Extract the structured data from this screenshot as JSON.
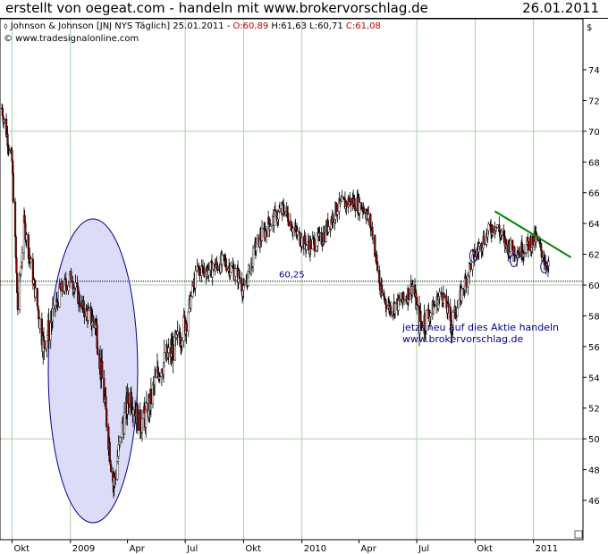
{
  "header": {
    "title": "erstellt von oegeat.com - handeln mit www.brokervorschlag.de",
    "date": "26.01.2011"
  },
  "legend": {
    "symbol_text": "Johnson & Johnson [JNJ NYS  Täglich] 25.01.2011 - ",
    "open": "O:60,89",
    "high": "H:61,63",
    "low": "L:60,71",
    "close": "C:61,08",
    "copyright": "© www.tradesignalonline.com",
    "currency": "$"
  },
  "colors": {
    "up_candle": "#ffffff",
    "down_candle": "#8b0000",
    "trendline": "#008000",
    "ellipse_fill": "#dcdcf8",
    "grid": "#a9cfa9",
    "annotation": "#00008b"
  },
  "annotations": {
    "level_label": "60,25",
    "promo_line1": "jetzt neu auf dies Aktie handeln",
    "promo_line2": "www.brokervorschlag.de"
  },
  "chart_data": {
    "type": "candlestick",
    "title": "Johnson & Johnson [JNJ NYS Täglich]",
    "ylim": [
      44,
      75
    ],
    "y_ticks": [
      46,
      48,
      50,
      52,
      54,
      56,
      58,
      60,
      62,
      64,
      66,
      68,
      70,
      72,
      74
    ],
    "x_ticks": [
      "Okt",
      "2009",
      "Apr",
      "Jul",
      "Okt",
      "2010",
      "Apr",
      "Jul",
      "Okt",
      "2011"
    ],
    "price_path": [
      [
        "2008-09-15",
        71.5
      ],
      [
        "2008-10-01",
        68.0
      ],
      [
        "2008-10-10",
        58.5
      ],
      [
        "2008-10-20",
        64.0
      ],
      [
        "2008-11-01",
        61.0
      ],
      [
        "2008-11-20",
        56.0
      ],
      [
        "2008-12-15",
        59.5
      ],
      [
        "2009-01-02",
        60.5
      ],
      [
        "2009-01-20",
        58.5
      ],
      [
        "2009-02-10",
        57.5
      ],
      [
        "2009-03-01",
        50.5
      ],
      [
        "2009-03-10",
        47.0
      ],
      [
        "2009-03-25",
        51.0
      ],
      [
        "2009-04-05",
        53.0
      ],
      [
        "2009-04-20",
        51.0
      ],
      [
        "2009-05-01",
        51.5
      ],
      [
        "2009-05-20",
        54.5
      ],
      [
        "2009-06-15",
        56.0
      ],
      [
        "2009-07-01",
        57.5
      ],
      [
        "2009-07-20",
        61.0
      ],
      [
        "2009-08-10",
        61.0
      ],
      [
        "2009-09-01",
        61.5
      ],
      [
        "2009-09-25",
        60.5
      ],
      [
        "2009-10-01",
        59.5
      ],
      [
        "2009-10-20",
        62.5
      ],
      [
        "2009-11-10",
        64.0
      ],
      [
        "2009-12-05",
        65.0
      ],
      [
        "2009-12-20",
        63.5
      ],
      [
        "2010-01-10",
        62.5
      ],
      [
        "2010-02-01",
        63.0
      ],
      [
        "2010-02-25",
        65.0
      ],
      [
        "2010-03-20",
        65.5
      ],
      [
        "2010-04-10",
        65.0
      ],
      [
        "2010-04-22",
        63.5
      ],
      [
        "2010-05-05",
        59.5
      ],
      [
        "2010-05-20",
        58.5
      ],
      [
        "2010-06-10",
        59.0
      ],
      [
        "2010-06-25",
        60.0
      ],
      [
        "2010-07-05",
        57.5
      ],
      [
        "2010-07-20",
        58.0
      ],
      [
        "2010-08-10",
        59.5
      ],
      [
        "2010-08-25",
        57.5
      ],
      [
        "2010-09-10",
        59.5
      ],
      [
        "2010-09-25",
        61.5
      ],
      [
        "2010-10-15",
        63.0
      ],
      [
        "2010-11-01",
        64.0
      ],
      [
        "2010-11-20",
        62.5
      ],
      [
        "2010-12-10",
        62.2
      ],
      [
        "2011-01-05",
        63.0
      ],
      [
        "2011-01-25",
        61.1
      ]
    ],
    "trendline": [
      [
        "2010-11-01",
        64.8
      ],
      [
        "2011-03-01",
        61.8
      ]
    ],
    "support_level": 60.25,
    "markers": [
      {
        "date": "2010-09-28",
        "price": 61.9,
        "style": "circle"
      },
      {
        "date": "2010-12-01",
        "price": 61.6,
        "style": "circle"
      },
      {
        "date": "2011-01-18",
        "price": 61.2,
        "style": "circle"
      }
    ]
  }
}
